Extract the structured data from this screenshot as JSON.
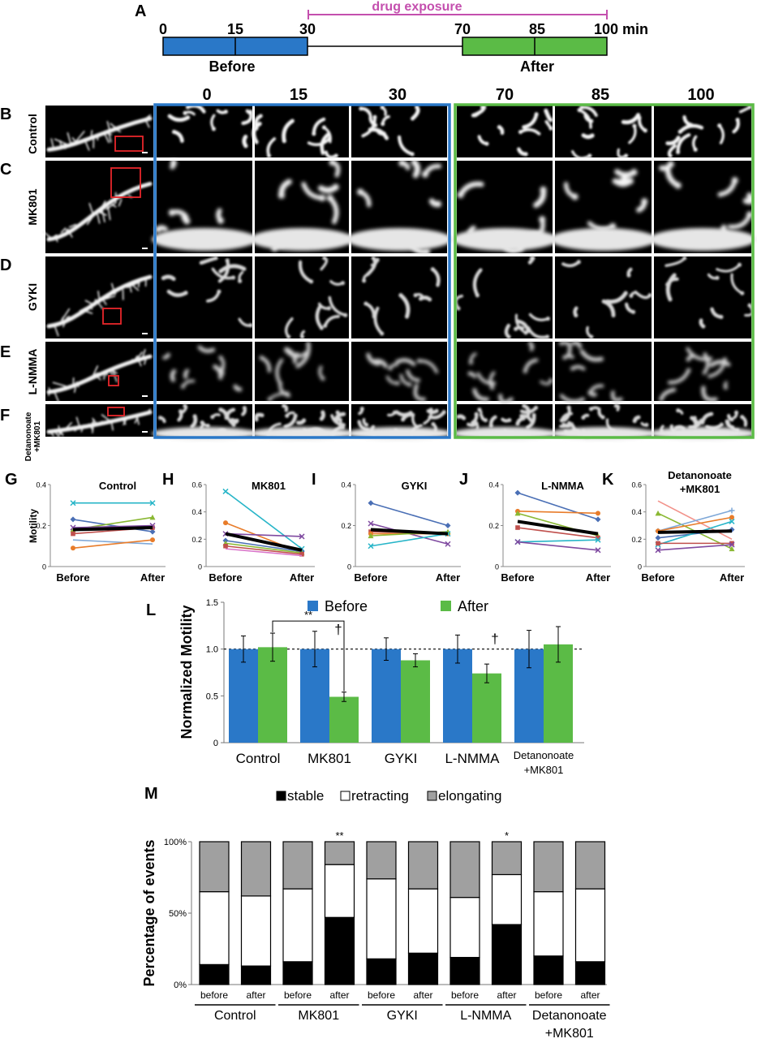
{
  "panel_letters": {
    "A": "A",
    "B": "B",
    "C": "C",
    "D": "D",
    "E": "E",
    "F": "F",
    "G": "G",
    "H": "H",
    "I": "I",
    "J": "J",
    "K": "K",
    "L": "L",
    "M": "M"
  },
  "timeline": {
    "drug_label": "drug exposure",
    "ticks": [
      "0",
      "15",
      "30",
      "70",
      "85",
      "100 min"
    ],
    "before_label": "Before",
    "after_label": "After",
    "before_color": "#2a78c8",
    "after_color": "#5bbb46",
    "drug_color": "#c44fae"
  },
  "image_grid": {
    "time_headers": [
      "0",
      "15",
      "30",
      "70",
      "85",
      "100"
    ],
    "rows": [
      "Control",
      "MK801",
      "GYKI",
      "L-NMMA",
      "Detanonoate\n+MK801"
    ],
    "row_letters": [
      "B",
      "C",
      "D",
      "E",
      "F"
    ]
  },
  "motility_plots": {
    "ylabel": "Motility",
    "x_labels": [
      "Before",
      "After"
    ],
    "panels": [
      {
        "letter": "G",
        "title": "Control",
        "ymax": 0.4,
        "yticks": [
          "0",
          "0.2",
          "0.4"
        ],
        "series": [
          {
            "color": "#27b5c8",
            "marker": "x",
            "values": [
              0.31,
              0.31
            ]
          },
          {
            "color": "#4a6fb5",
            "marker": "diamond",
            "values": [
              0.23,
              0.17
            ]
          },
          {
            "color": "#8ab833",
            "marker": "triangle",
            "values": [
              0.18,
              0.24
            ]
          },
          {
            "color": "#c0504d",
            "marker": "square",
            "values": [
              0.16,
              0.19
            ]
          },
          {
            "color": "#7f4aa0",
            "marker": "x",
            "values": [
              0.19,
              0.2
            ]
          },
          {
            "color": "#7fa8d8",
            "marker": "none",
            "values": [
              0.13,
              0.11
            ]
          },
          {
            "color": "#e87c2a",
            "marker": "circle",
            "values": [
              0.09,
              0.13
            ]
          },
          {
            "color": "#000000",
            "marker": "mean",
            "values": [
              0.18,
              0.19
            ]
          }
        ]
      },
      {
        "letter": "H",
        "title": "MK801",
        "ymax": 0.6,
        "yticks": [
          "0",
          "0.2",
          "0.4",
          "0.6"
        ],
        "series": [
          {
            "color": "#27b5c8",
            "marker": "x",
            "values": [
              0.55,
              0.13
            ]
          },
          {
            "color": "#e87c2a",
            "marker": "circle",
            "values": [
              0.32,
              0.1
            ]
          },
          {
            "color": "#7f4aa0",
            "marker": "x",
            "values": [
              0.24,
              0.22
            ]
          },
          {
            "color": "#4a6fb5",
            "marker": "diamond",
            "values": [
              0.19,
              0.11
            ]
          },
          {
            "color": "#8ab833",
            "marker": "triangle",
            "values": [
              0.17,
              0.1
            ]
          },
          {
            "color": "#c0504d",
            "marker": "square",
            "values": [
              0.15,
              0.09
            ]
          },
          {
            "color": "#d974c9",
            "marker": "none",
            "values": [
              0.13,
              0.08
            ]
          },
          {
            "color": "#000000",
            "marker": "mean",
            "values": [
              0.24,
              0.12
            ]
          }
        ]
      },
      {
        "letter": "I",
        "title": "GYKI",
        "ymax": 0.4,
        "yticks": [
          "0",
          "0.2",
          "0.4"
        ],
        "series": [
          {
            "color": "#4a6fb5",
            "marker": "diamond",
            "values": [
              0.31,
              0.2
            ]
          },
          {
            "color": "#7f4aa0",
            "marker": "x",
            "values": [
              0.21,
              0.11
            ]
          },
          {
            "color": "#c0504d",
            "marker": "square",
            "values": [
              0.17,
              0.16
            ]
          },
          {
            "color": "#e87c2a",
            "marker": "circle",
            "values": [
              0.16,
              0.16
            ]
          },
          {
            "color": "#8ab833",
            "marker": "triangle",
            "values": [
              0.15,
              0.17
            ]
          },
          {
            "color": "#27b5c8",
            "marker": "x",
            "values": [
              0.1,
              0.16
            ]
          },
          {
            "color": "#000000",
            "marker": "mean",
            "values": [
              0.18,
              0.16
            ]
          }
        ]
      },
      {
        "letter": "J",
        "title": "L-NMMA",
        "ymax": 0.4,
        "yticks": [
          "0",
          "0.2",
          "0.4"
        ],
        "series": [
          {
            "color": "#4a6fb5",
            "marker": "diamond",
            "values": [
              0.36,
              0.23
            ]
          },
          {
            "color": "#e87c2a",
            "marker": "circle",
            "values": [
              0.27,
              0.26
            ]
          },
          {
            "color": "#8ab833",
            "marker": "triangle",
            "values": [
              0.26,
              0.15
            ]
          },
          {
            "color": "#c0504d",
            "marker": "square",
            "values": [
              0.19,
              0.14
            ]
          },
          {
            "color": "#27b5c8",
            "marker": "x",
            "values": [
              0.12,
              0.13
            ]
          },
          {
            "color": "#7f4aa0",
            "marker": "x",
            "values": [
              0.12,
              0.08
            ]
          },
          {
            "color": "#000000",
            "marker": "mean",
            "values": [
              0.22,
              0.16
            ]
          }
        ]
      },
      {
        "letter": "K",
        "title": "Detanonoate\n+MK801",
        "ymax": 0.6,
        "yticks": [
          "0",
          "0.2",
          "0.4",
          "0.6"
        ],
        "series": [
          {
            "color": "#f2928a",
            "marker": "none",
            "values": [
              0.48,
              0.2
            ]
          },
          {
            "color": "#8ab833",
            "marker": "triangle",
            "values": [
              0.39,
              0.13
            ]
          },
          {
            "color": "#7fa8d8",
            "marker": "plus",
            "values": [
              0.26,
              0.41
            ]
          },
          {
            "color": "#e87c2a",
            "marker": "circle",
            "values": [
              0.26,
              0.36
            ]
          },
          {
            "color": "#4a6fb5",
            "marker": "diamond",
            "values": [
              0.21,
              0.27
            ]
          },
          {
            "color": "#27b5c8",
            "marker": "x",
            "values": [
              0.16,
              0.33
            ]
          },
          {
            "color": "#c0504d",
            "marker": "square",
            "values": [
              0.17,
              0.17
            ]
          },
          {
            "color": "#7f4aa0",
            "marker": "x",
            "values": [
              0.12,
              0.16
            ]
          },
          {
            "color": "#000000",
            "marker": "mean",
            "values": [
              0.25,
              0.26
            ]
          }
        ]
      }
    ]
  },
  "chart_data": [
    {
      "type": "bar",
      "ylabel": "Normalized Motility",
      "ylim": [
        0,
        1.5
      ],
      "yticks": [
        "0",
        "0.5",
        "1.0",
        "1.5"
      ],
      "categories": [
        "Control",
        "MK801",
        "GYKI",
        "L-NMMA",
        "Detanonoate\n+MK801"
      ],
      "legend": {
        "position": "top",
        "entries": [
          "Before",
          "After"
        ]
      },
      "series": [
        {
          "name": "Before",
          "color": "#2a78c8",
          "values": [
            1.0,
            1.0,
            1.0,
            1.0,
            1.0
          ],
          "errors": [
            0.14,
            0.19,
            0.12,
            0.15,
            0.2
          ]
        },
        {
          "name": "After",
          "color": "#5bbb46",
          "values": [
            1.02,
            0.49,
            0.88,
            0.74,
            1.05
          ],
          "errors": [
            0.15,
            0.05,
            0.07,
            0.1,
            0.19
          ]
        }
      ],
      "annotations": {
        "bracket": "**",
        "dagger": "†"
      }
    },
    {
      "type": "bar",
      "stacked": true,
      "ylabel": "Percentage of events",
      "yticks": [
        "0%",
        "50%",
        "100%"
      ],
      "legend": {
        "position": "top",
        "entries": [
          "stable",
          "retracting",
          "elongating"
        ]
      },
      "groups": [
        "Control",
        "MK801",
        "GYKI",
        "L-NMMA",
        "Detanonoate\n+MK801"
      ],
      "bar_labels": [
        "before",
        "after"
      ],
      "series": [
        {
          "name": "stable",
          "color": "#000000",
          "values": [
            14,
            13,
            16,
            47,
            18,
            22,
            19,
            42,
            20,
            16
          ]
        },
        {
          "name": "retracting",
          "color": "#ffffff",
          "values": [
            51,
            49,
            51,
            37,
            56,
            45,
            42,
            35,
            45,
            51
          ]
        },
        {
          "name": "elongating",
          "color": "#a0a0a0",
          "values": [
            35,
            38,
            33,
            16,
            26,
            33,
            39,
            23,
            35,
            33
          ]
        }
      ],
      "significance": [
        "",
        "",
        "",
        "**",
        "",
        "",
        "",
        "*",
        "",
        ""
      ]
    }
  ]
}
